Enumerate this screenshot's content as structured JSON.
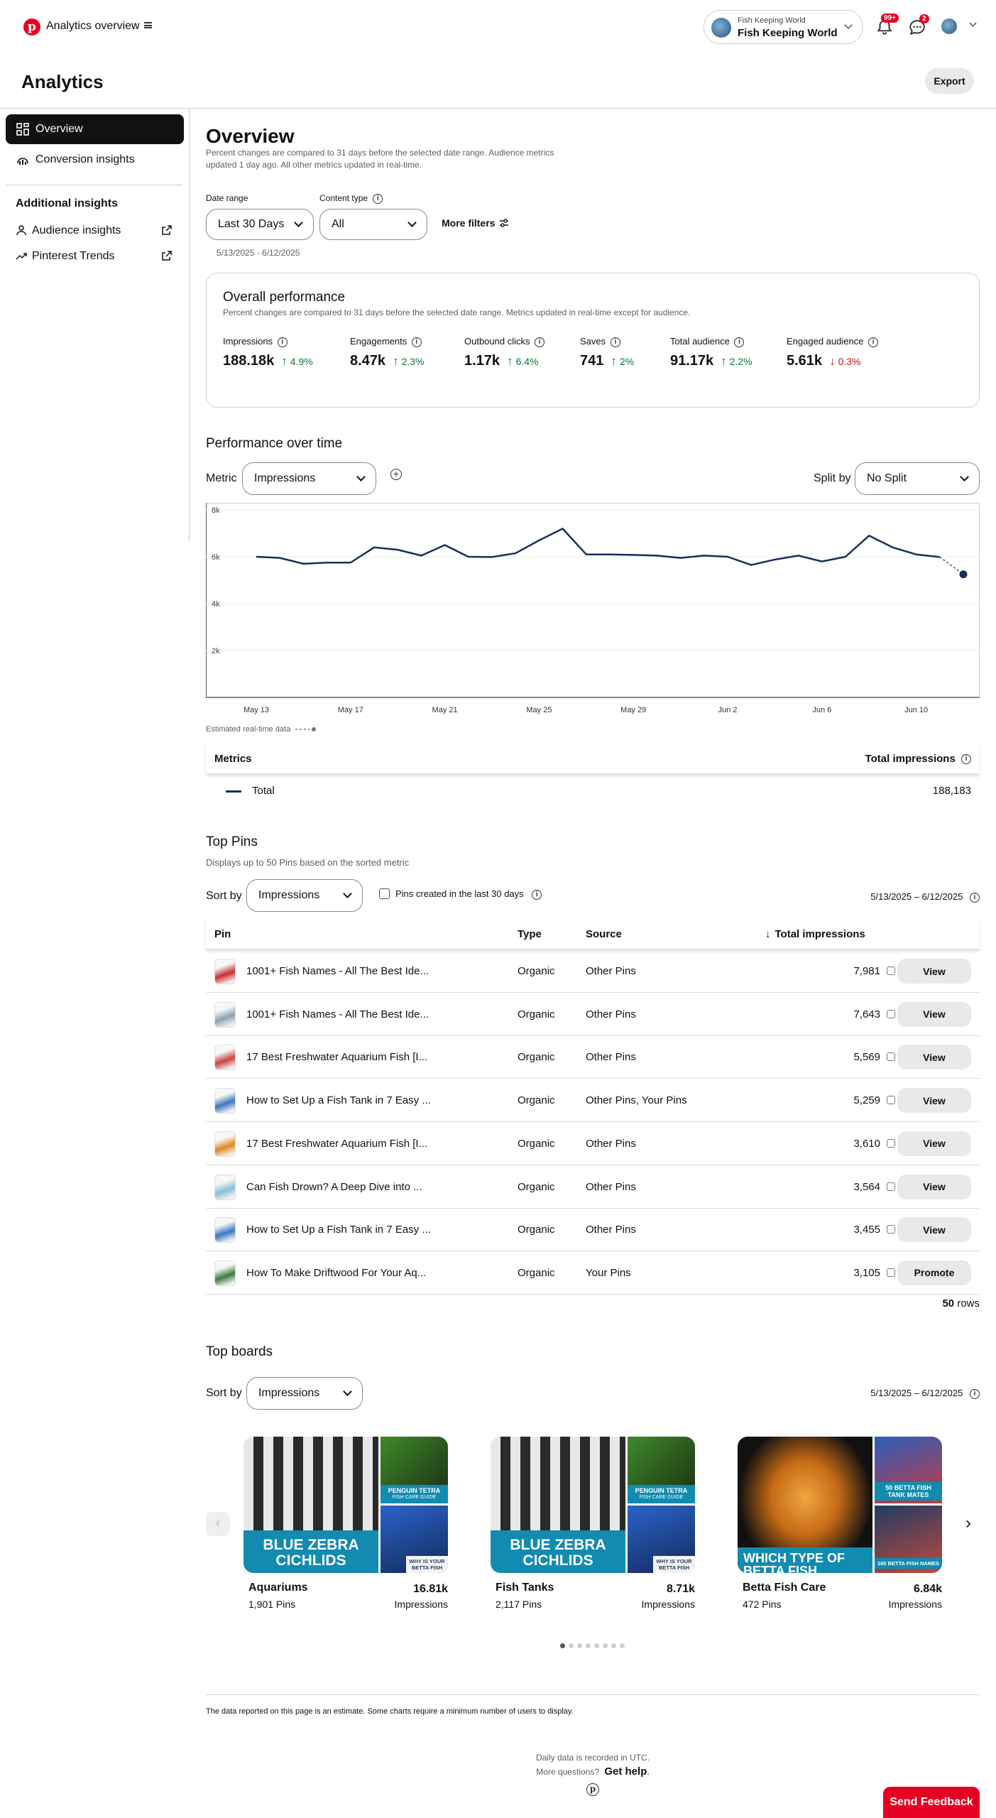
{
  "topbar": {
    "title": "Analytics overview",
    "account_small": "Fish Keeping World",
    "account_name": "Fish Keeping World",
    "notif_badge": "99+",
    "msg_badge": "2"
  },
  "page": {
    "title": "Analytics",
    "export_label": "Export"
  },
  "sidebar": {
    "items": [
      {
        "label": "Overview"
      },
      {
        "label": "Conversion insights"
      }
    ],
    "section_title": "Additional insights",
    "links": [
      {
        "label": "Audience insights"
      },
      {
        "label": "Pinterest Trends"
      }
    ]
  },
  "overview": {
    "title": "Overview",
    "desc1": "Percent changes are compared to 31 days before the selected date range. Audience metrics",
    "desc2": "updated 1 day ago. All other metrics updated in real-time.",
    "date_range_label": "Date range",
    "date_range_value": "Last 30 Days",
    "content_type_label": "Content type",
    "content_type_value": "All",
    "more_filters": "More filters",
    "date_span": "5/13/2025 - 6/12/2025"
  },
  "performance": {
    "title": "Overall performance",
    "desc": "Percent changes are compared to 31 days before the selected date range. Metrics updated in real-time except for audience.",
    "metrics": [
      {
        "label": "Impressions",
        "value": "188.18k",
        "change": "4.9%",
        "dir": "up"
      },
      {
        "label": "Engagements",
        "value": "8.47k",
        "change": "2.3%",
        "dir": "up"
      },
      {
        "label": "Outbound clicks",
        "value": "1.17k",
        "change": "6.4%",
        "dir": "up"
      },
      {
        "label": "Saves",
        "value": "741",
        "change": "2%",
        "dir": "up"
      },
      {
        "label": "Total audience",
        "value": "91.17k",
        "change": "2.2%",
        "dir": "up"
      },
      {
        "label": "Engaged audience",
        "value": "5.61k",
        "change": "0.3%",
        "dir": "down"
      }
    ]
  },
  "pot": {
    "title": "Performance over time",
    "metric_label": "Metric",
    "metric_value": "Impressions",
    "split_label": "Split by",
    "split_value": "No Split",
    "estimated_label": "Estimated real-time data",
    "table_header_left": "Metrics",
    "table_header_right": "Total impressions",
    "total_label": "Total",
    "total_value": "188,183"
  },
  "chart_data": {
    "type": "line",
    "ylim": [
      0,
      8000
    ],
    "yticks": [
      "8k",
      "6k",
      "4k",
      "2k"
    ],
    "ytick_values": [
      8000,
      6000,
      4000,
      2000
    ],
    "xtick_labels": [
      "May 13",
      "May 17",
      "May 21",
      "May 25",
      "May 29",
      "Jun 2",
      "Jun 6",
      "Jun 10"
    ],
    "xtick_index": [
      0,
      4,
      8,
      12,
      16,
      20,
      24,
      28
    ],
    "series": [
      {
        "values": [
          6000,
          5950,
          5700,
          5750,
          5750,
          6400,
          6300,
          6050,
          6500,
          6000,
          5990,
          6150,
          6700,
          7200,
          6100,
          6100,
          6080,
          6050,
          5950,
          6050,
          6000,
          5650,
          5880,
          6050,
          5800,
          6000,
          6900,
          6400,
          6100,
          5990
        ],
        "estimated": [
          5990,
          5250
        ]
      }
    ],
    "line_color": "#15305a"
  },
  "top_pins": {
    "title": "Top Pins",
    "subtitle": "Displays up to 50 Pins based on the sorted metric",
    "sort_label": "Sort by",
    "sort_value": "Impressions",
    "checkbox_label": "Pins created in the last 30 days",
    "date_span": "5/13/2025 – 6/12/2025",
    "columns": {
      "pin": "Pin",
      "type": "Type",
      "source": "Source",
      "impressions": "Total impressions"
    },
    "rows": [
      {
        "title": "1001+ Fish Names - All The Best Ide...",
        "type": "Organic",
        "source": "Other Pins",
        "impressions": "7,981",
        "action": "View",
        "thumb": "#c9302c"
      },
      {
        "title": "1001+ Fish Names - All The Best Ide...",
        "type": "Organic",
        "source": "Other Pins",
        "impressions": "7,643",
        "action": "View",
        "thumb": "#8fa0b0"
      },
      {
        "title": "17 Best Freshwater Aquarium Fish [I...",
        "type": "Organic",
        "source": "Other Pins",
        "impressions": "5,569",
        "action": "View",
        "thumb": "#d04040"
      },
      {
        "title": "How to Set Up a Fish Tank in 7 Easy ...",
        "type": "Organic",
        "source": "Other Pins, Your Pins",
        "impressions": "5,259",
        "action": "View",
        "thumb": "#3a78c0"
      },
      {
        "title": "17 Best Freshwater Aquarium Fish [I...",
        "type": "Organic",
        "source": "Other Pins",
        "impressions": "3,610",
        "action": "View",
        "thumb": "#e08a20"
      },
      {
        "title": "Can Fish Drown? A Deep Dive into ...",
        "type": "Organic",
        "source": "Other Pins",
        "impressions": "3,564",
        "action": "View",
        "thumb": "#8ac0d8"
      },
      {
        "title": "How to Set Up a Fish Tank in 7 Easy ...",
        "type": "Organic",
        "source": "Other Pins",
        "impressions": "3,455",
        "action": "View",
        "thumb": "#3a78c0"
      },
      {
        "title": "How To Make Driftwood For Your Aq...",
        "type": "Organic",
        "source": "Your Pins",
        "impressions": "3,105",
        "action": "Promote",
        "thumb": "#3d7a3a"
      }
    ],
    "rows_count": "50",
    "rows_suffix": "rows"
  },
  "top_boards": {
    "title": "Top boards",
    "sort_label": "Sort by",
    "sort_value": "Impressions",
    "date_span": "5/13/2025 – 6/12/2025",
    "boards": [
      {
        "name": "Aquariums",
        "pins": "1,901 Pins",
        "value": "16.81k",
        "metric": "Impressions",
        "banner": "BLUE ZEBRA CICHLIDS",
        "side1": "PENGUIN TETRA",
        "side1_sub": "FISH CARE GUIDE",
        "side2": "WHY IS YOUR BETTA FISH"
      },
      {
        "name": "Fish Tanks",
        "pins": "2,117 Pins",
        "value": "8.71k",
        "metric": "Impressions",
        "banner": "BLUE ZEBRA CICHLIDS",
        "side1": "PENGUIN TETRA",
        "side1_sub": "FISH CARE GUIDE",
        "side2": "WHY IS YOUR BETTA FISH"
      },
      {
        "name": "Betta Fish Care",
        "pins": "472 Pins",
        "value": "6.84k",
        "metric": "Impressions",
        "banner": "WHICH TYPE OF BETTA FISH",
        "side1": "50 BETTA FISH TANK MATES",
        "side1_sub": "",
        "side2": "160 BETTA FISH NAMES"
      }
    ]
  },
  "footer": {
    "disclaimer": "The data reported on this page is an estimate. Some charts require a minimum number of users to display.",
    "utc": "Daily data is recorded in UTC.",
    "questions": "More questions?",
    "help": "Get help",
    "feedback": "Send Feedback"
  },
  "colors": {
    "brand": "#e60023",
    "positive": "#0a7b38",
    "negative": "#c41414",
    "line": "#15305a"
  }
}
